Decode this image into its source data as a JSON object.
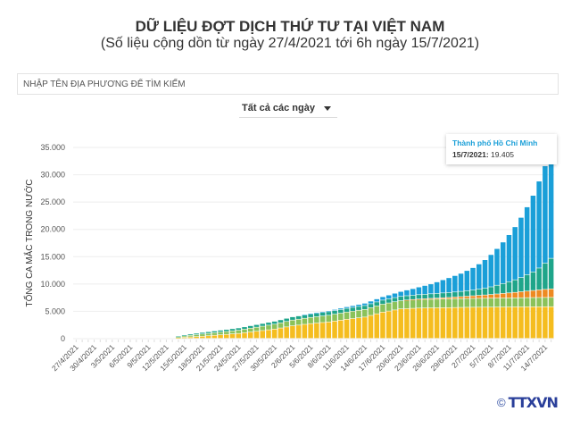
{
  "header": {
    "title": "DỮ LIỆU ĐỢT DỊCH THỨ TƯ TẠI VIỆT NAM",
    "subtitle": "(Số liệu cộng dồn từ ngày 27/4/2021 tới 6h ngày 15/7/2021)"
  },
  "search": {
    "placeholder": "NHẬP TÊN ĐỊA PHƯƠNG ĐỂ TÌM KIẾM"
  },
  "filter": {
    "selected": "Tất cả các ngày"
  },
  "tooltip": {
    "name": "Thành phố Hồ Chí Minh",
    "date": "15/7/2021:",
    "value": "19.405"
  },
  "logo": {
    "text": "TTXVN",
    "copyright": "©"
  },
  "chart_data": {
    "type": "bar",
    "stacked": true,
    "ylabel": "TỔNG CA MẮC TRONG NƯỚC",
    "xlabel": "",
    "ylim": [
      0,
      35000
    ],
    "y_ticks": [
      "0",
      "5.000",
      "10.000",
      "15.000",
      "20.000",
      "25.000",
      "30.000",
      "35.000"
    ],
    "y_tick_values": [
      0,
      5000,
      10000,
      15000,
      20000,
      25000,
      30000,
      35000
    ],
    "x_start": "27/4/2021",
    "x_count": 80,
    "x_tick_every": 3,
    "x_tick_labels": [
      "27/4/2021",
      "30/4/2021",
      "3/5/2021",
      "6/5/2021",
      "9/5/2021",
      "12/5/2021",
      "15/5/2021",
      "18/5/2021",
      "21/5/2021",
      "24/5/2021",
      "27/5/2021",
      "30/5/2021",
      "2/6/2021",
      "5/6/2021",
      "8/6/2021",
      "11/6/2021",
      "14/6/2021",
      "17/6/2021",
      "20/6/2021",
      "23/6/2021",
      "26/6/2021",
      "29/6/2021",
      "2/7/2021",
      "5/7/2021",
      "8/7/2021",
      "11/7/2021",
      "14/7/2021"
    ],
    "grid": true,
    "series": [
      {
        "id": "s1",
        "color": "#f5bd1f",
        "values": [
          0,
          0,
          0,
          0,
          0,
          0,
          0,
          0,
          0,
          0,
          0,
          0,
          0,
          0,
          0,
          0,
          0,
          100,
          200,
          270,
          330,
          400,
          480,
          570,
          650,
          730,
          820,
          900,
          1030,
          1170,
          1300,
          1430,
          1570,
          1700,
          1900,
          2100,
          2300,
          2430,
          2570,
          2700,
          2800,
          2900,
          3000,
          3170,
          3330,
          3500,
          3630,
          3770,
          3900,
          4200,
          4500,
          4800,
          5000,
          5200,
          5400,
          5450,
          5500,
          5550,
          5570,
          5590,
          5600,
          5620,
          5630,
          5650,
          5670,
          5690,
          5700,
          5710,
          5715,
          5720,
          5730,
          5740,
          5750,
          5760,
          5770,
          5780,
          5785,
          5790,
          5795,
          5800
        ]
      },
      {
        "id": "s2",
        "color": "#8bc25a",
        "values": [
          0,
          0,
          0,
          0,
          0,
          0,
          0,
          0,
          0,
          0,
          0,
          0,
          0,
          0,
          0,
          0,
          0,
          150,
          250,
          300,
          350,
          400,
          430,
          460,
          500,
          530,
          560,
          600,
          650,
          700,
          750,
          800,
          850,
          900,
          950,
          1000,
          1050,
          1080,
          1110,
          1140,
          1170,
          1200,
          1230,
          1260,
          1290,
          1320,
          1350,
          1380,
          1400,
          1420,
          1440,
          1460,
          1480,
          1500,
          1510,
          1520,
          1530,
          1540,
          1550,
          1560,
          1570,
          1577,
          1584,
          1591,
          1598,
          1605,
          1612,
          1619,
          1626,
          1633,
          1640,
          1647,
          1654,
          1661,
          1668,
          1675,
          1682,
          1689,
          1695,
          1700
        ]
      },
      {
        "id": "s3",
        "color": "#ee8a22",
        "values": [
          0,
          0,
          0,
          0,
          0,
          0,
          0,
          0,
          0,
          0,
          0,
          0,
          0,
          0,
          0,
          0,
          0,
          0,
          0,
          0,
          0,
          0,
          0,
          0,
          0,
          0,
          0,
          0,
          0,
          0,
          0,
          0,
          0,
          0,
          0,
          0,
          0,
          0,
          0,
          0,
          0,
          0,
          0,
          0,
          0,
          0,
          0,
          0,
          0,
          0,
          0,
          0,
          0,
          0,
          0,
          50,
          80,
          110,
          140,
          170,
          200,
          240,
          280,
          320,
          370,
          420,
          480,
          540,
          600,
          680,
          760,
          840,
          920,
          1000,
          1100,
          1200,
          1300,
          1400,
          1480,
          1550
        ]
      },
      {
        "id": "s4",
        "color": "#1fa58a",
        "values": [
          0,
          0,
          0,
          0,
          0,
          0,
          0,
          0,
          0,
          0,
          0,
          0,
          0,
          0,
          0,
          0,
          0,
          150,
          200,
          230,
          260,
          290,
          310,
          330,
          350,
          370,
          390,
          410,
          430,
          450,
          470,
          490,
          510,
          530,
          550,
          570,
          590,
          600,
          610,
          620,
          630,
          640,
          650,
          660,
          670,
          680,
          690,
          700,
          710,
          720,
          730,
          740,
          750,
          760,
          770,
          780,
          790,
          800,
          820,
          840,
          860,
          880,
          900,
          930,
          960,
          1000,
          1050,
          1150,
          1250,
          1400,
          1600,
          1800,
          2050,
          2300,
          2600,
          3000,
          3400,
          4000,
          4800,
          5600
        ]
      },
      {
        "id": "hcm",
        "name": "Thành phố Hồ Chí Minh",
        "color": "#1a9fd8",
        "values": [
          0,
          0,
          0,
          0,
          0,
          0,
          0,
          0,
          0,
          0,
          0,
          0,
          0,
          0,
          0,
          0,
          0,
          0,
          0,
          0,
          0,
          0,
          0,
          0,
          0,
          0,
          0,
          0,
          0,
          0,
          0,
          0,
          0,
          0,
          0,
          0,
          0,
          0,
          50,
          80,
          110,
          140,
          170,
          200,
          240,
          280,
          320,
          360,
          420,
          480,
          550,
          620,
          700,
          800,
          900,
          1050,
          1200,
          1400,
          1600,
          1800,
          2100,
          2400,
          2700,
          3000,
          3300,
          3700,
          4100,
          4600,
          5200,
          5900,
          6700,
          7600,
          8600,
          9700,
          11000,
          12400,
          14000,
          15900,
          17800,
          19405
        ]
      }
    ]
  }
}
